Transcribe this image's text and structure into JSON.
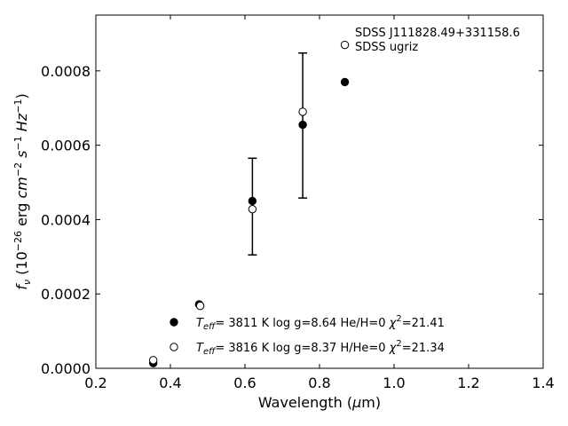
{
  "chart_data": {
    "type": "scatter",
    "xlabel_parts": [
      "Wavelength (",
      "μ",
      "m)"
    ],
    "ylabel_parts": {
      "main": "f",
      "main_sub": "ν",
      "unit_open": " (10",
      "unit_exp1": "−26",
      "unit_erg": " erg ",
      "unit_cm": "cm",
      "unit_exp2": "−2",
      "unit_s": " s",
      "unit_exp3": "−1",
      "unit_hz": " Hz",
      "unit_exp4": "−1",
      "unit_close": ")"
    },
    "xlim": [
      0.2,
      1.4
    ],
    "ylim": [
      0.0,
      0.00095
    ],
    "xticks": [
      0.2,
      0.4,
      0.6,
      0.8,
      1.0,
      1.2,
      1.4
    ],
    "xtick_labels": [
      "0.2",
      "0.4",
      "0.6",
      "0.8",
      "1.0",
      "1.2",
      "1.4"
    ],
    "yticks": [
      0.0,
      0.0002,
      0.0004,
      0.0006,
      0.0008
    ],
    "ytick_labels": [
      "0.0000",
      "0.0002",
      "0.0004",
      "0.0006",
      "0.0008"
    ],
    "annotation": {
      "line1": "SDSS J111828.49+331158.6",
      "line2": "SDSS ugriz",
      "anchor_x": 0.9,
      "anchor_y": 0.00091,
      "marker_y": 0.00087
    },
    "observed": {
      "name": "SDSS ugriz",
      "marker": "open-circle",
      "x": [
        0.354,
        0.477,
        0.623,
        0.763,
        0.913
      ],
      "y": [
        2.2e-05,
        0.000168,
        0.000428,
        0.00069,
        0.00087
      ],
      "yerr_x": [
        0.62,
        0.755
      ],
      "yerr_low": [
        0.000305,
        0.000458
      ],
      "yerr_high": [
        0.000565,
        0.000848
      ]
    },
    "series": [
      {
        "name": "Teff=3811 K log g=8.64 He/H=0 chi2=21.41",
        "marker": "filled-circle",
        "x": [
          0.354,
          0.477,
          0.62,
          0.755,
          0.868
        ],
        "y": [
          1.4e-05,
          0.000172,
          0.00045,
          0.000655,
          0.00077
        ]
      },
      {
        "name": "Teff=3816 K log g=8.37 H/He=0 chi2=21.34",
        "marker": "open-circle",
        "x": [],
        "y": []
      }
    ],
    "legend": [
      {
        "marker": "filled-circle",
        "teff": "3811 K",
        "logg_label": "log g=8.64",
        "comp": "He/H=0",
        "chi": "=21.41"
      },
      {
        "marker": "open-circle",
        "teff": "3816 K",
        "logg_label": "log g=8.37",
        "comp": "H/He=0",
        "chi": "=21.34"
      }
    ],
    "legend_position": "lower-center",
    "grid": false
  }
}
